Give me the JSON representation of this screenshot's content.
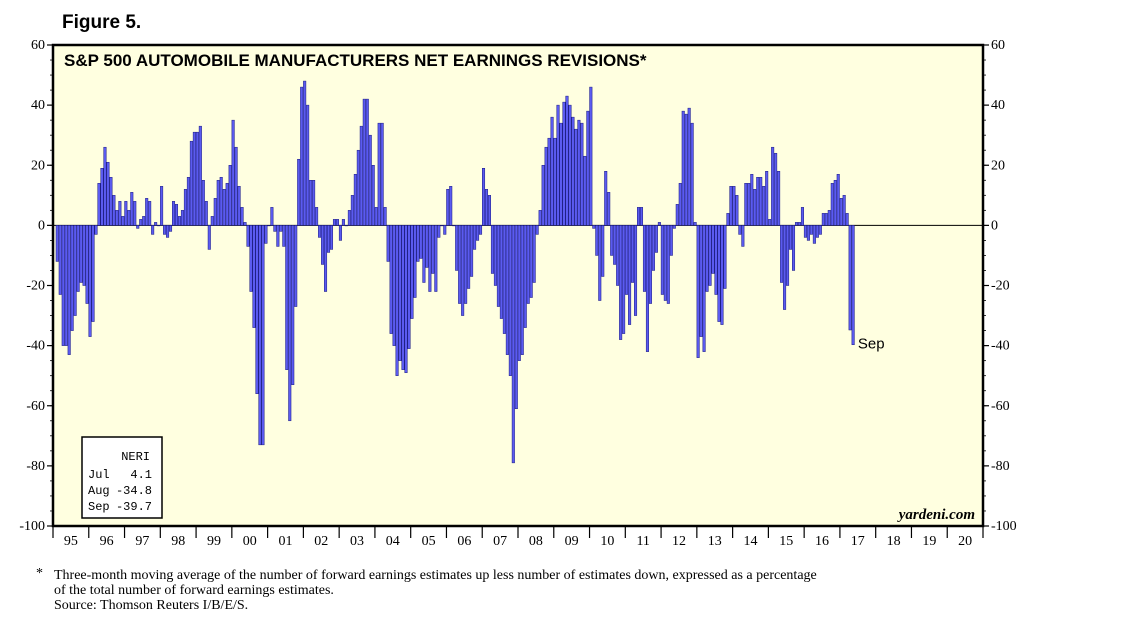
{
  "figure_label": "Figure 5.",
  "chart_data": {
    "type": "bar",
    "title": "S&P 500 AUTOMOBILE MANUFACTURERS NET EARNINGS REVISIONS*",
    "y_ticks": [
      "60",
      "40",
      "20",
      "0",
      "-20",
      "-40",
      "-60",
      "-80",
      "-100"
    ],
    "ylim": [
      -100,
      60
    ],
    "x_tick_labels": [
      "95",
      "96",
      "97",
      "98",
      "99",
      "00",
      "01",
      "02",
      "03",
      "04",
      "05",
      "06",
      "07",
      "08",
      "09",
      "10",
      "11",
      "12",
      "13",
      "14",
      "15",
      "16",
      "17",
      "18",
      "19",
      "20"
    ],
    "series": [
      {
        "values": [
          -12,
          -23,
          -40,
          -40,
          -43,
          -35,
          -30,
          -22,
          -19,
          -20,
          -26,
          -37,
          -32,
          -3,
          14,
          19,
          26,
          21,
          16,
          10,
          5,
          8,
          3,
          8,
          5,
          11,
          8,
          -1,
          2,
          3,
          9,
          8,
          -3,
          1,
          0,
          13,
          -3,
          -4,
          -2,
          8,
          7,
          3,
          5,
          12,
          16,
          28,
          31,
          31,
          33,
          15,
          8,
          -8,
          3,
          9,
          15,
          16,
          12,
          14,
          20,
          35,
          26,
          13,
          6,
          1,
          -7,
          -22,
          -34,
          -56,
          -73,
          -73,
          -6,
          0,
          6,
          -2,
          -7,
          -2,
          -7,
          -48,
          -65,
          -53,
          -27,
          22,
          46,
          48,
          40,
          15,
          15,
          6,
          -4,
          -13,
          -22,
          -9,
          -8,
          2,
          2,
          -5,
          2,
          0,
          5,
          10,
          17,
          25,
          33,
          42,
          42,
          30,
          20,
          6,
          34,
          34,
          6,
          -12,
          -36,
          -40,
          -50,
          -45,
          -48,
          -49,
          -41,
          -31,
          -24,
          -12,
          -11,
          -19,
          -14,
          -22,
          -16,
          -22,
          -4,
          0,
          -3,
          12,
          13,
          0,
          -15,
          -26,
          -30,
          -26,
          -21,
          -17,
          -8,
          -5,
          -3,
          19,
          12,
          10,
          -16,
          -20,
          -27,
          -31,
          -36,
          -43,
          -50,
          -79,
          -61,
          -45,
          -43,
          -34,
          -26,
          -24,
          -19,
          -3,
          5,
          20,
          26,
          29,
          36,
          29,
          40,
          34,
          41,
          43,
          40,
          36,
          32,
          35,
          34,
          23,
          38,
          46,
          -1,
          -10,
          -25,
          -17,
          18,
          11,
          -10,
          -13,
          -20,
          -38,
          -36,
          -23,
          -33,
          -19,
          -30,
          6,
          6,
          -22,
          -42,
          -26,
          -15,
          -9,
          1,
          -23,
          -25,
          -26,
          -10,
          -1,
          7,
          14,
          38,
          37,
          39,
          34,
          1,
          -44,
          -37,
          -42,
          -22,
          -20,
          -16,
          -23,
          -32,
          -33,
          -21,
          4,
          13,
          13,
          10,
          -3,
          -7,
          14,
          14,
          17,
          12,
          16,
          16,
          13,
          18,
          2,
          26,
          24,
          18,
          -19,
          -28,
          -20,
          -8,
          -15,
          1,
          1,
          6,
          -4,
          -5,
          -3,
          -6,
          -4,
          -3,
          4,
          4,
          5,
          14,
          15,
          17,
          9,
          10,
          4,
          -34.8,
          -39.7
        ]
      }
    ],
    "annotations": {
      "last_label": "Sep",
      "source_mark": "yardeni.com"
    },
    "legend_box": {
      "header": "NERI",
      "rows": [
        {
          "month": "Jul",
          "value": "4.1"
        },
        {
          "month": "Aug",
          "value": "-34.8"
        },
        {
          "month": "Sep",
          "value": "-39.7"
        }
      ]
    },
    "grid": false
  },
  "footnote": {
    "marker": "*",
    "line1": "Three-month moving average of the number of forward earnings estimates up less number of estimates down, expressed as a percentage",
    "line2": "of the total number of forward earnings estimates.",
    "source": "Source: Thomson Reuters I/B/E/S.",
    "color_bar": "#5b5bf0",
    "color_bg": "#ffffe0"
  }
}
